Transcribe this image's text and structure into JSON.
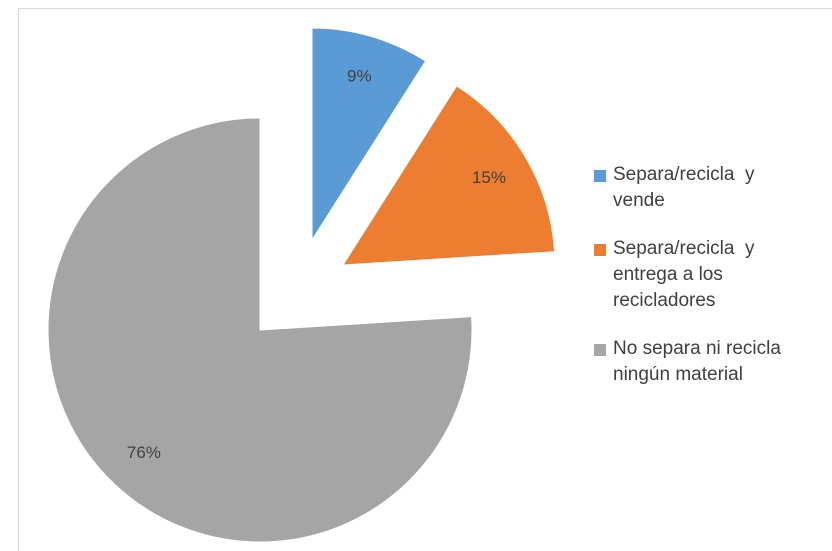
{
  "chart_data": {
    "type": "pie",
    "categories": [
      "Separa/recicla  y vende",
      "Separa/recicla  y entrega a los recicladores",
      "No separa ni recicla ningún material"
    ],
    "values": [
      9,
      15,
      76
    ],
    "value_labels": [
      "9%",
      "15%",
      "76%"
    ],
    "colors": [
      "#5b9bd5",
      "#ed7d31",
      "#a5a5a5"
    ],
    "legend": "right"
  }
}
